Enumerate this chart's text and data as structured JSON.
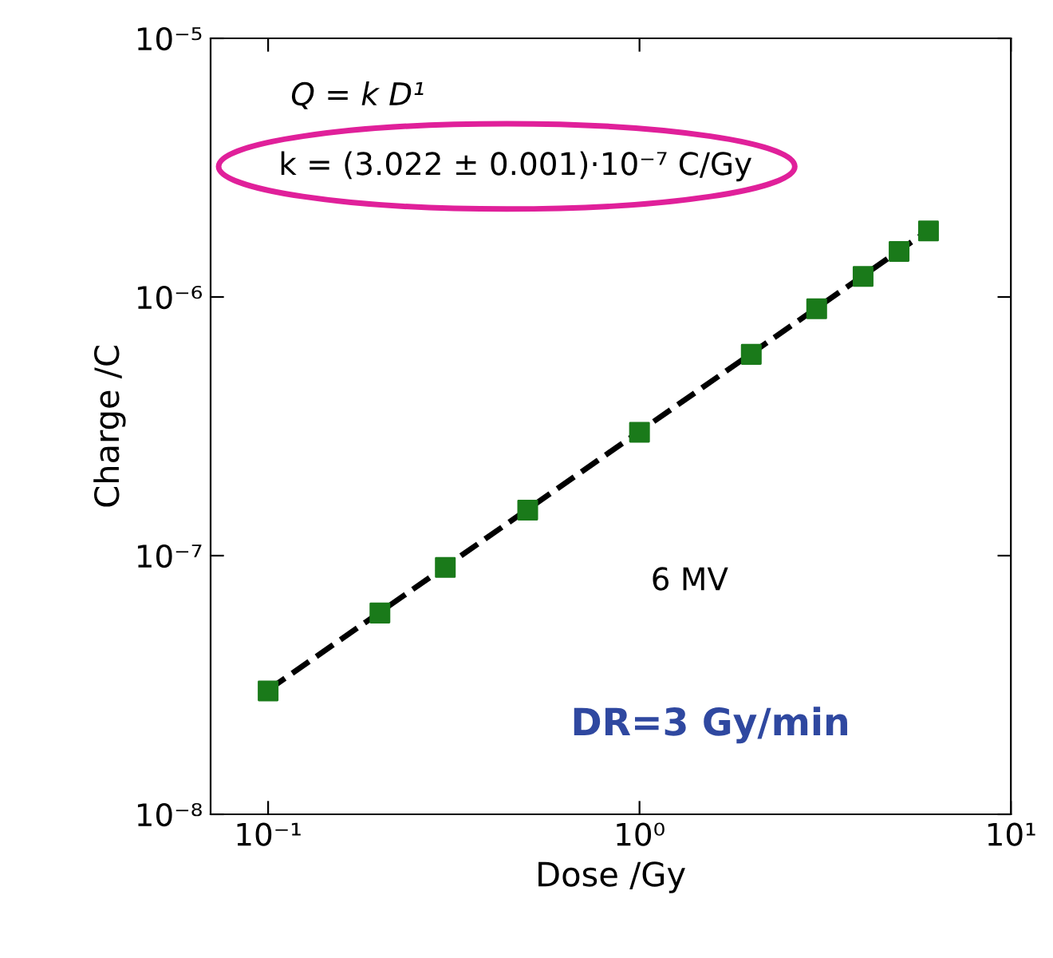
{
  "chart_data": {
    "type": "scatter",
    "xlabel": "Dose /Gy",
    "ylabel": "Charge /C",
    "log": "xy",
    "xlim": [
      0.07,
      10
    ],
    "ylim": [
      1e-08,
      1e-05
    ],
    "xticks": [
      {
        "value": 0.1,
        "label": "10⁻¹"
      },
      {
        "value": 1,
        "label": "10⁰"
      },
      {
        "value": 10,
        "label": "10¹"
      }
    ],
    "yticks": [
      {
        "value": 1e-08,
        "label": "10⁻⁸"
      },
      {
        "value": 1e-07,
        "label": "10⁻⁷"
      },
      {
        "value": 1e-06,
        "label": "10⁻⁶"
      },
      {
        "value": 1e-05,
        "label": "10⁻⁵"
      }
    ],
    "grid": false,
    "series": [
      {
        "color": "#1a7a1a",
        "marker": "square",
        "x": [
          0.1,
          0.2,
          0.3,
          0.5,
          1,
          2,
          3,
          4,
          5,
          6
        ],
        "values": [
          3e-08,
          6e-08,
          9e-08,
          1.5e-07,
          3e-07,
          6e-07,
          9e-07,
          1.2e-06,
          1.5e-06,
          1.8e-06
        ]
      },
      {
        "type": "line",
        "color": "#000000",
        "line_style": "dashed",
        "marker": "none",
        "x": [
          0.1,
          6
        ],
        "values": [
          3.022e-08,
          1.813e-06
        ]
      }
    ],
    "annotations": [
      "Q = k D¹",
      "k = (3.022 ± 0.001)·10⁻⁷ C/Gy",
      "6 MV",
      "DR=3 Gy/min"
    ]
  }
}
